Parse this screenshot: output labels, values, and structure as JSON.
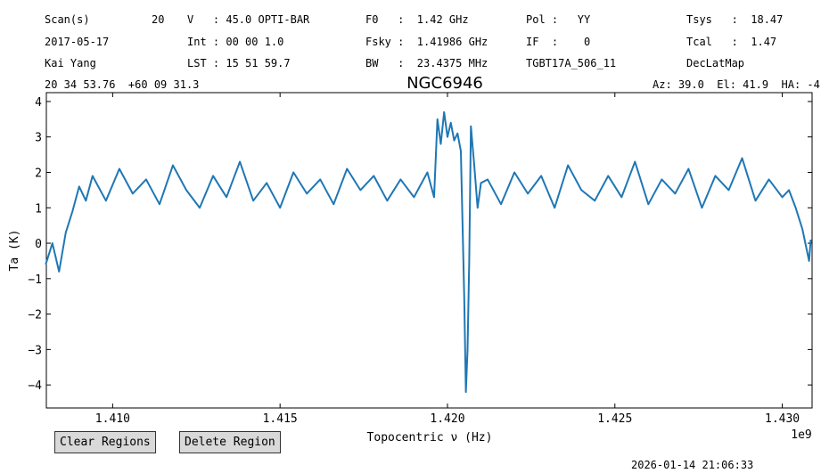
{
  "header": {
    "rows": [
      [
        "Scan(s)",
        "20",
        "V   : 45.0 OPTI-BAR",
        "F0   :  1.42 GHz",
        "Pol :   YY",
        "Tsys   :  18.47"
      ],
      [
        "2017-05-17",
        "Int : 00 00 1.0",
        "Fsky :  1.41986 GHz",
        "IF  :    0",
        "Tcal   :  1.47"
      ],
      [
        "Kai Yang",
        "LST : 15 51 59.7",
        "BW   :  23.4375 MHz",
        "TGBT17A_506_11",
        "DecLatMap"
      ],
      [
        "20 34 53.76  +60 09 31.3",
        "Az: 39.0  El: 41.9  HA: -4"
      ]
    ]
  },
  "chart_data": {
    "type": "line",
    "title": "NGC6946",
    "x_label": "Topocentric ν (Hz)",
    "y_label": "Ta (K)",
    "x_offset": "1e9",
    "xlim": [
      1.40802,
      1.43089
    ],
    "ylim": [
      -4.65,
      4.25
    ],
    "xticks": [
      {
        "value": 1.41,
        "label": "1.410"
      },
      {
        "value": 1.415,
        "label": "1.415"
      },
      {
        "value": 1.42,
        "label": "1.420"
      },
      {
        "value": 1.425,
        "label": "1.425"
      },
      {
        "value": 1.43,
        "label": "1.430"
      }
    ],
    "yticks": [
      {
        "value": -4,
        "label": "−4"
      },
      {
        "value": -3,
        "label": "−3"
      },
      {
        "value": -2,
        "label": "−2"
      },
      {
        "value": -1,
        "label": "−1"
      },
      0,
      1,
      2,
      3,
      4
    ],
    "x": [
      1.408,
      1.4082,
      1.4084,
      1.4086,
      1.4088,
      1.409,
      1.4092,
      1.4094,
      1.4098,
      1.4102,
      1.4106,
      1.411,
      1.4114,
      1.4118,
      1.4122,
      1.4126,
      1.413,
      1.4134,
      1.4138,
      1.4142,
      1.4146,
      1.415,
      1.4154,
      1.4158,
      1.4162,
      1.4166,
      1.417,
      1.4174,
      1.4178,
      1.4182,
      1.4186,
      1.419,
      1.4194,
      1.4196,
      1.4197,
      1.4198,
      1.4199,
      1.42,
      1.4201,
      1.4202,
      1.4203,
      1.4204,
      1.4205,
      1.42055,
      1.4206,
      1.42065,
      1.4207,
      1.4208,
      1.4209,
      1.421,
      1.4212,
      1.4216,
      1.422,
      1.4224,
      1.4228,
      1.4232,
      1.4236,
      1.424,
      1.4244,
      1.4248,
      1.4252,
      1.4256,
      1.426,
      1.4264,
      1.4268,
      1.4272,
      1.4276,
      1.428,
      1.4284,
      1.4288,
      1.4292,
      1.4296,
      1.43,
      1.4302,
      1.4304,
      1.4306,
      1.4308,
      1.43085
    ],
    "series": [
      {
        "color": "#1f77b4",
        "values": [
          -0.6,
          0.0,
          -0.8,
          0.3,
          0.9,
          1.6,
          1.2,
          1.9,
          1.2,
          2.1,
          1.4,
          1.8,
          1.1,
          2.2,
          1.5,
          1.0,
          1.9,
          1.3,
          2.3,
          1.2,
          1.7,
          1.0,
          2.0,
          1.4,
          1.8,
          1.1,
          2.1,
          1.5,
          1.9,
          1.2,
          1.8,
          1.3,
          2.0,
          1.3,
          3.5,
          2.8,
          3.7,
          3.0,
          3.4,
          2.9,
          3.1,
          2.6,
          -1.5,
          -4.2,
          -3.0,
          -0.5,
          3.3,
          2.2,
          1.0,
          1.7,
          1.8,
          1.1,
          2.0,
          1.4,
          1.9,
          1.0,
          2.2,
          1.5,
          1.2,
          1.9,
          1.3,
          2.3,
          1.1,
          1.8,
          1.4,
          2.1,
          1.0,
          1.9,
          1.5,
          2.4,
          1.2,
          1.8,
          1.3,
          1.5,
          1.0,
          0.4,
          -0.5,
          0.1
        ]
      }
    ]
  },
  "buttons": [
    "Clear Regions",
    "Delete Region"
  ],
  "timestamp": "2026-01-14 21:06:33"
}
